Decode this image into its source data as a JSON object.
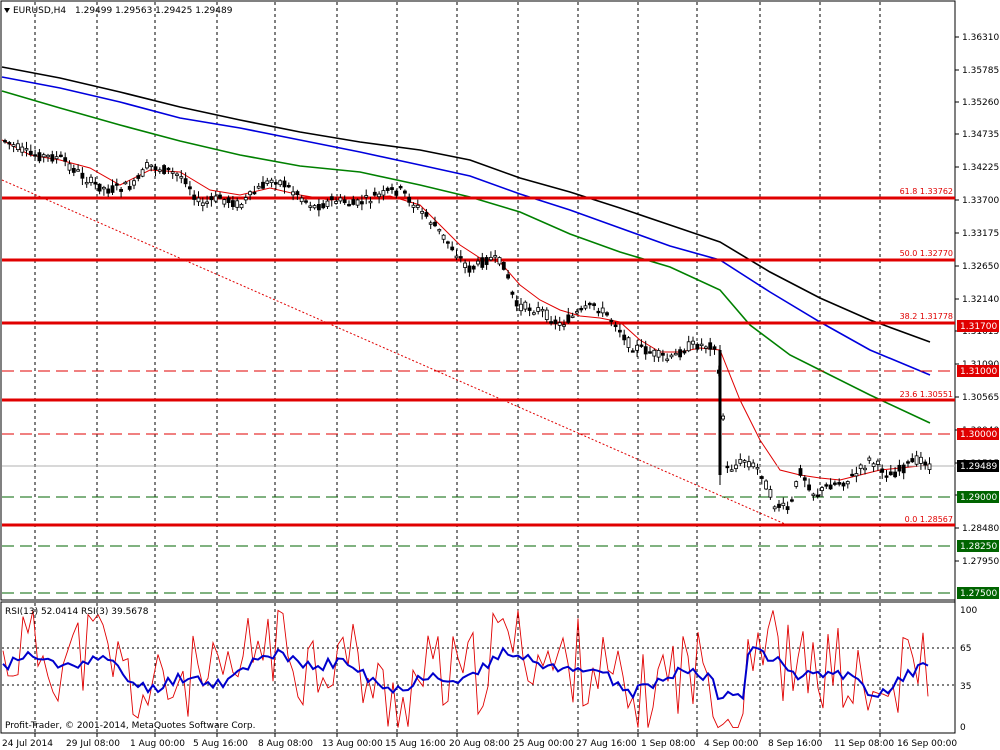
{
  "header": {
    "symbol": "EURUSD,H4",
    "ohlc": "1.29499 1.29563 1.29425 1.29489"
  },
  "rsi_header": "RSI(13) 52.0414  RSI(3) 39.5678",
  "copyright": "Profit-Trader, © 2001-2014, MetaQuotes Software Corp.",
  "price_axis_labels": [
    "1.36310",
    "1.35785",
    "1.35260",
    "1.34735",
    "1.34225",
    "1.33700",
    "1.33175",
    "1.32650",
    "1.32140",
    "1.31615",
    "1.31090",
    "1.30565",
    "1.30040",
    "1.29515",
    "1.29000",
    "1.28480",
    "1.27950"
  ],
  "rsi_axis_labels": [
    "100",
    "65",
    "35",
    "0"
  ],
  "time_axis_labels": [
    "24 Jul 2014",
    "29 Jul 08:00",
    "1 Aug 00:00",
    "5 Aug 16:00",
    "8 Aug 08:00",
    "13 Aug 00:00",
    "15 Aug 16:00",
    "20 Aug 08:00",
    "25 Aug 00:00",
    "27 Aug 16:00",
    "1 Sep 08:00",
    "4 Sep 00:00",
    "8 Sep 16:00",
    "11 Sep 08:00",
    "16 Sep 00:00"
  ],
  "fib_levels": [
    {
      "label": "61.8 1.33762",
      "price": 1.33762
    },
    {
      "label": "50.0 1.32770",
      "price": 1.3277
    },
    {
      "label": "38.2 1.31778",
      "price": 1.31778
    },
    {
      "label": "23.6 1.30551",
      "price": 1.30551
    },
    {
      "label": "0.0 1.28567",
      "price": 1.28567
    }
  ],
  "level_boxes": [
    {
      "label": "1.31700",
      "price": 1.317,
      "color": "#e00000",
      "style": "dashed"
    },
    {
      "label": "1.31000",
      "price": 1.31,
      "color": "#e00000",
      "style": "dashed"
    },
    {
      "label": "1.30000",
      "price": 1.3,
      "color": "#e00000",
      "style": "dashed"
    },
    {
      "label": "1.29489",
      "price": 1.29489,
      "color": "#000000",
      "style": "current"
    },
    {
      "label": "1.29000",
      "price": 1.29,
      "color": "#006400",
      "style": "dashed"
    },
    {
      "label": "1.28250",
      "price": 1.2825,
      "color": "#006400",
      "style": "dashed"
    },
    {
      "label": "1.27500",
      "price": 1.275,
      "color": "#006400",
      "style": "dashed"
    }
  ],
  "colors": {
    "fib_line": "#e00000",
    "ma_black": "#000000",
    "ma_blue": "#0000dd",
    "ma_green": "#008000",
    "ma_red": "#e00000",
    "rsi13": "#0000cc",
    "rsi3": "#e00000"
  }
}
